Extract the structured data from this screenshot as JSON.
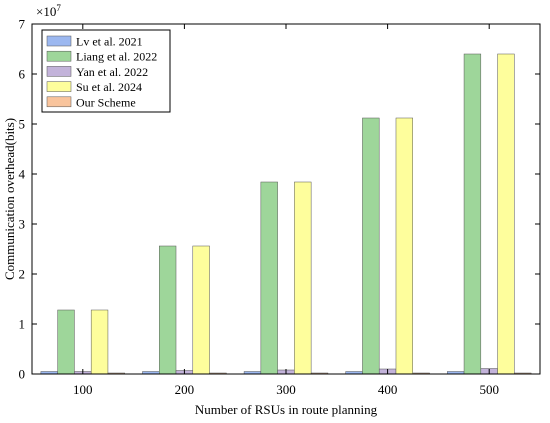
{
  "chart_data": {
    "type": "bar",
    "xlabel": "Number of RSUs in route planning",
    "ylabel": "Communication overhead(bits)",
    "multiplier_label": "×10",
    "multiplier_exponent": "7",
    "ylim": [
      0,
      7
    ],
    "yticks": [
      "0",
      "1",
      "2",
      "3",
      "4",
      "5",
      "6",
      "7"
    ],
    "categories": [
      "100",
      "200",
      "300",
      "400",
      "500"
    ],
    "legend_position": "top-left",
    "grid": false,
    "series": [
      {
        "name": "Lv et al.  2021",
        "color": "#9cb8f0",
        "values": [
          0.05,
          0.05,
          0.05,
          0.05,
          0.05
        ]
      },
      {
        "name": "Liang et al.  2022",
        "color": "#9ed69a",
        "values": [
          1.28,
          2.56,
          3.84,
          5.12,
          6.4
        ]
      },
      {
        "name": "Yan et al.  2022",
        "color": "#c3b3da",
        "values": [
          0.05,
          0.07,
          0.08,
          0.1,
          0.11
        ]
      },
      {
        "name": "Su et al.  2024",
        "color": "#fefe9c",
        "values": [
          1.28,
          2.56,
          3.84,
          5.12,
          6.4
        ]
      },
      {
        "name": "Our Scheme",
        "color": "#f9c49c",
        "values": [
          0.015,
          0.015,
          0.015,
          0.015,
          0.015
        ]
      }
    ]
  }
}
